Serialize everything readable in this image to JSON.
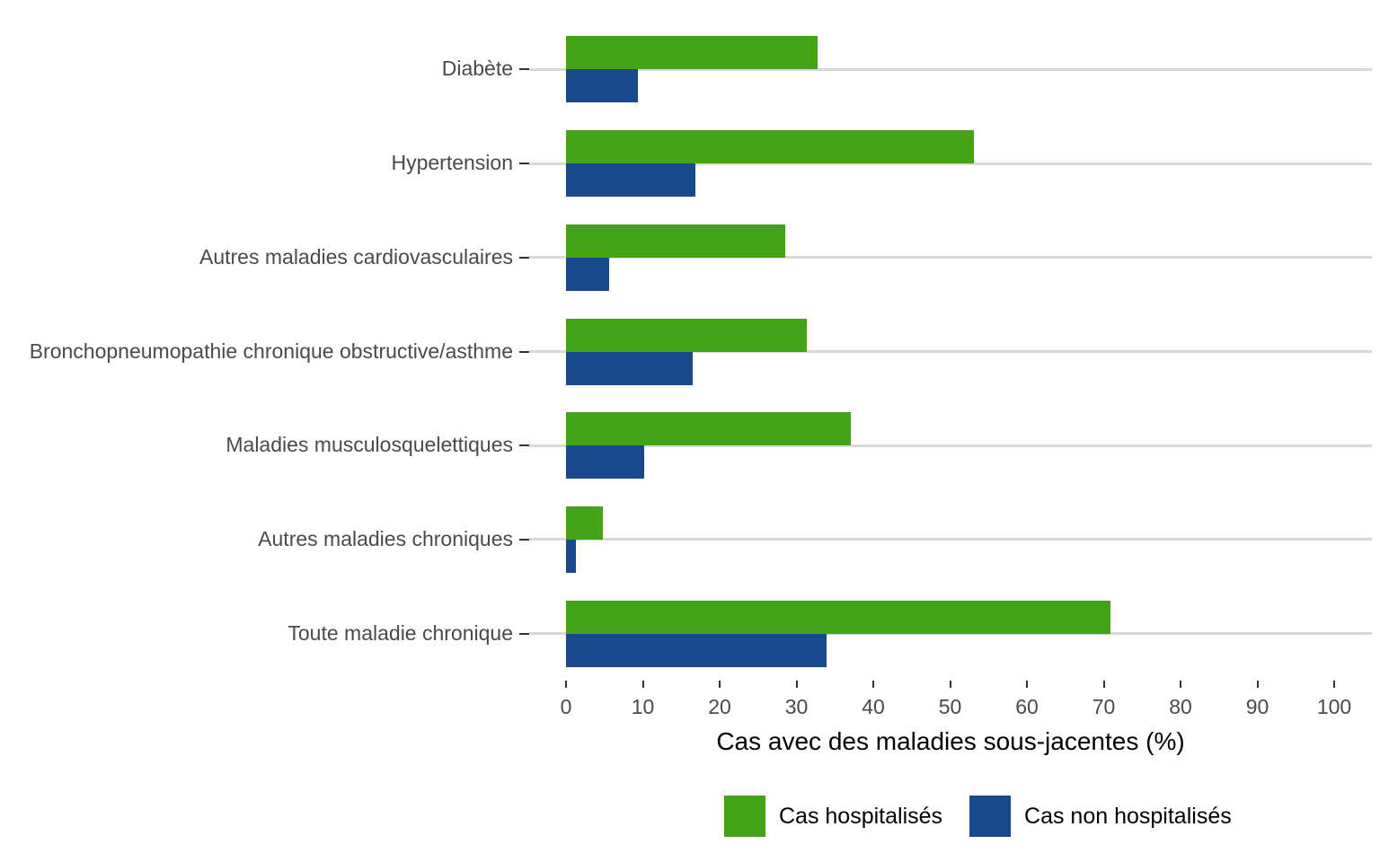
{
  "chart_data": {
    "type": "bar",
    "orientation": "horizontal",
    "title": "",
    "xlabel": "Cas avec des maladies sous-jacentes (%)",
    "ylabel": "",
    "xlim": [
      0,
      100
    ],
    "x_ticks": [
      0,
      10,
      20,
      30,
      40,
      50,
      60,
      70,
      80,
      90,
      100
    ],
    "grid": "one horizontal light-gray line per category",
    "legend_position": "bottom",
    "categories": [
      "Diabète",
      "Hypertension",
      "Autres maladies cardiovasculaires",
      "Bronchopneumopathie chronique obstructive/asthme",
      "Maladies musculosquelettiques",
      "Autres maladies chroniques",
      "Toute maladie chronique"
    ],
    "series": [
      {
        "name": "Cas hospitalisés",
        "color": "#45a317",
        "values": [
          32.7,
          53.1,
          28.5,
          31.3,
          37.1,
          4.8,
          70.9
        ]
      },
      {
        "name": "Cas non hospitalisés",
        "color": "#17498c",
        "values": [
          9.3,
          16.9,
          5.6,
          16.5,
          10.2,
          1.3,
          33.9
        ]
      }
    ]
  },
  "colors": {
    "background": "#ffffff",
    "gridline": "#d9d9d9",
    "tick_mark": "#333333",
    "axis_text": "#4a4a4a",
    "axis_title_text": "#000000",
    "legend_text": "#000000",
    "bar_green": "#45a317",
    "bar_blue": "#17498c"
  }
}
